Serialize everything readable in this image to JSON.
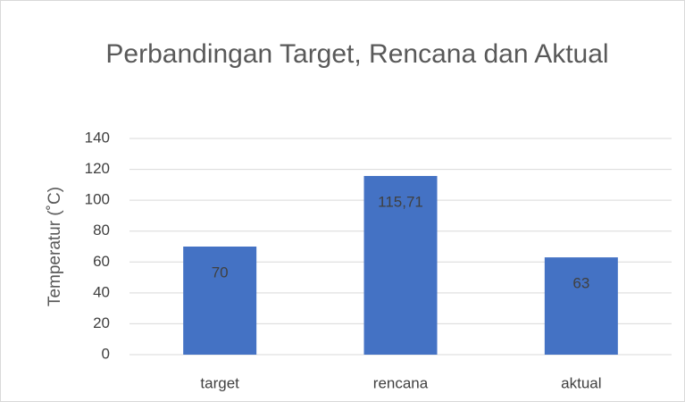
{
  "chart_data": {
    "type": "bar",
    "title": "Perbandingan Target, Rencana dan Aktual",
    "y_label": "Temperatur (˚C)",
    "categories": [
      "target",
      "rencana",
      "aktual"
    ],
    "values": [
      70,
      115.71,
      63
    ],
    "value_labels": [
      "70",
      "115,71",
      "63"
    ],
    "color": "#4472c4",
    "ylim": [
      0,
      140
    ],
    "yticks": [
      0,
      20,
      40,
      60,
      80,
      100,
      120,
      140
    ],
    "grid": true
  }
}
